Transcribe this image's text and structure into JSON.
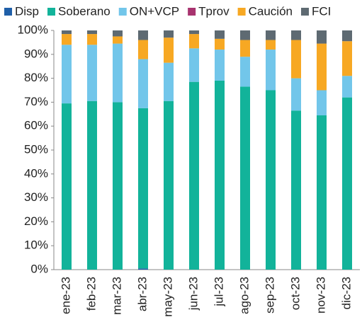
{
  "chart_data": {
    "type": "bar",
    "stacked": true,
    "categories": [
      "ene-23",
      "feb-23",
      "mar-23",
      "abr-23",
      "may-23",
      "jun-23",
      "jul-23",
      "ago-23",
      "sep-23",
      "oct-23",
      "nov-23",
      "dic-23"
    ],
    "series": [
      {
        "name": "Disp",
        "color": "#1f5fa8",
        "values": [
          0,
          0,
          0,
          0.5,
          0,
          0,
          0,
          0,
          0,
          0,
          0,
          0
        ]
      },
      {
        "name": "Soberano",
        "color": "#12b39a",
        "values": [
          69.5,
          70.5,
          70,
          67,
          70.5,
          78.5,
          79,
          76.5,
          75,
          66.5,
          64.5,
          72
        ]
      },
      {
        "name": "ON+VCP",
        "color": "#72c6ea",
        "values": [
          24.5,
          23.5,
          24.5,
          20.5,
          16,
          14,
          13,
          12.5,
          17,
          13.5,
          10.5,
          9
        ]
      },
      {
        "name": "Tprov",
        "color": "#a8336f",
        "values": [
          0,
          0,
          0,
          0,
          0,
          0,
          0,
          0,
          0,
          0,
          0,
          0
        ]
      },
      {
        "name": "Caución",
        "color": "#f7a823",
        "values": [
          4.5,
          4.5,
          3,
          8,
          10.5,
          6,
          4.5,
          7,
          4,
          16,
          19.5,
          14.5
        ]
      },
      {
        "name": "FCI",
        "color": "#5e6a72",
        "values": [
          1.5,
          1.5,
          2.5,
          4,
          3,
          1.5,
          3.5,
          4,
          4,
          4,
          5.5,
          4.5
        ]
      }
    ],
    "ylim": [
      0,
      100
    ],
    "yticks": [
      {
        "value": 0,
        "label": "0%"
      },
      {
        "value": 10,
        "label": "10%"
      },
      {
        "value": 20,
        "label": "20%"
      },
      {
        "value": 30,
        "label": "30%"
      },
      {
        "value": 40,
        "label": "40%"
      },
      {
        "value": 50,
        "label": "50%"
      },
      {
        "value": 60,
        "label": "60%"
      },
      {
        "value": 70,
        "label": "70%"
      },
      {
        "value": 80,
        "label": "80%"
      },
      {
        "value": 90,
        "label": "90%"
      },
      {
        "value": 100,
        "label": "100%"
      }
    ],
    "grid": false
  }
}
